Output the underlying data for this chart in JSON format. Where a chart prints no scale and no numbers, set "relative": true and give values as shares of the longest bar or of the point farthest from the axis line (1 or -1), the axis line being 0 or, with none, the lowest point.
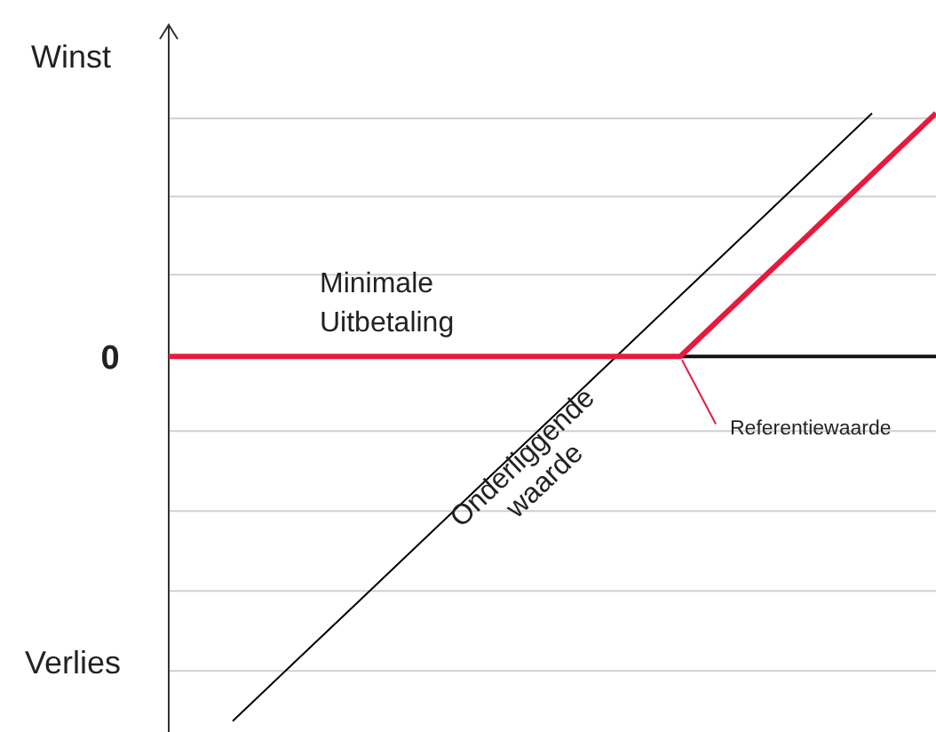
{
  "chart_data": {
    "type": "line",
    "relative": true,
    "categories": [
      null,
      null,
      null,
      null,
      null,
      null,
      null,
      null,
      null,
      null,
      null,
      null,
      null
    ],
    "series": [
      {
        "name": "Onderliggende waarde",
        "color": "#000000",
        "values": [
          null,
          -1,
          -0.833,
          -0.667,
          -0.5,
          -0.333,
          -0.167,
          0,
          0.167,
          0.333,
          0.5,
          0.667,
          null
        ]
      },
      {
        "name": "Minimale Uitbetaling",
        "color": "#e8193c",
        "values": [
          0,
          0,
          0,
          0,
          0,
          0,
          0,
          0,
          0,
          0.167,
          0.333,
          0.5,
          0.667
        ]
      }
    ],
    "annotations": [
      "Winst",
      "Verlies",
      "0",
      "Referentiewaarde"
    ],
    "ref_lines": [
      {
        "axis": "y",
        "value": 0,
        "color": "#111111"
      }
    ],
    "grid": true,
    "line_style": "solid"
  }
}
